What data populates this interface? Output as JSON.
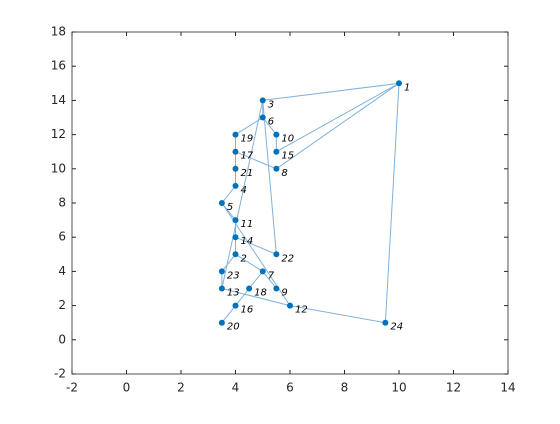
{
  "chart_data": {
    "type": "graph",
    "labels": [
      "1",
      "3",
      "6",
      "19",
      "10",
      "17",
      "15",
      "21",
      "8",
      "4",
      "5",
      "11",
      "14",
      "2",
      "22",
      "23",
      "7",
      "13",
      "18",
      "9",
      "16",
      "12",
      "20",
      "24"
    ],
    "x": [
      10,
      5,
      5,
      4,
      5.5,
      4,
      5.5,
      4,
      5.5,
      4,
      3.5,
      4,
      4,
      4,
      5.5,
      3.5,
      5,
      3.5,
      4.5,
      5.5,
      4,
      6,
      3.5,
      9.5
    ],
    "y": [
      15,
      14,
      13,
      12,
      12,
      11,
      11,
      10,
      10,
      9,
      8,
      7,
      6,
      5,
      5,
      4,
      4,
      3,
      3,
      3,
      2,
      2,
      1,
      1
    ],
    "edges": [
      [
        "1",
        "3"
      ],
      [
        "3",
        "6"
      ],
      [
        "6",
        "19"
      ],
      [
        "6",
        "10"
      ],
      [
        "19",
        "17"
      ],
      [
        "10",
        "15"
      ],
      [
        "17",
        "21"
      ],
      [
        "17",
        "8"
      ],
      [
        "21",
        "4"
      ],
      [
        "4",
        "5"
      ],
      [
        "5",
        "11"
      ],
      [
        "11",
        "14"
      ],
      [
        "14",
        "2"
      ],
      [
        "14",
        "22"
      ],
      [
        "2",
        "23"
      ],
      [
        "2",
        "7"
      ],
      [
        "23",
        "13"
      ],
      [
        "7",
        "18"
      ],
      [
        "7",
        "9"
      ],
      [
        "13",
        "12"
      ],
      [
        "18",
        "16"
      ],
      [
        "16",
        "20"
      ],
      [
        "12",
        "24"
      ],
      [
        "24",
        "1"
      ],
      [
        "1",
        "15"
      ],
      [
        "1",
        "8"
      ],
      [
        "22",
        "3"
      ],
      [
        "3",
        "13"
      ],
      [
        "5",
        "12"
      ]
    ],
    "node_color": "#0072bd",
    "edge_color": "#7fb2dc",
    "xlim": [
      -2,
      14
    ],
    "ylim": [
      -2,
      18
    ],
    "xticks": [
      -2,
      0,
      2,
      4,
      6,
      8,
      10,
      12,
      14
    ],
    "yticks": [
      -2,
      0,
      2,
      4,
      6,
      8,
      10,
      12,
      14,
      16,
      18
    ]
  }
}
